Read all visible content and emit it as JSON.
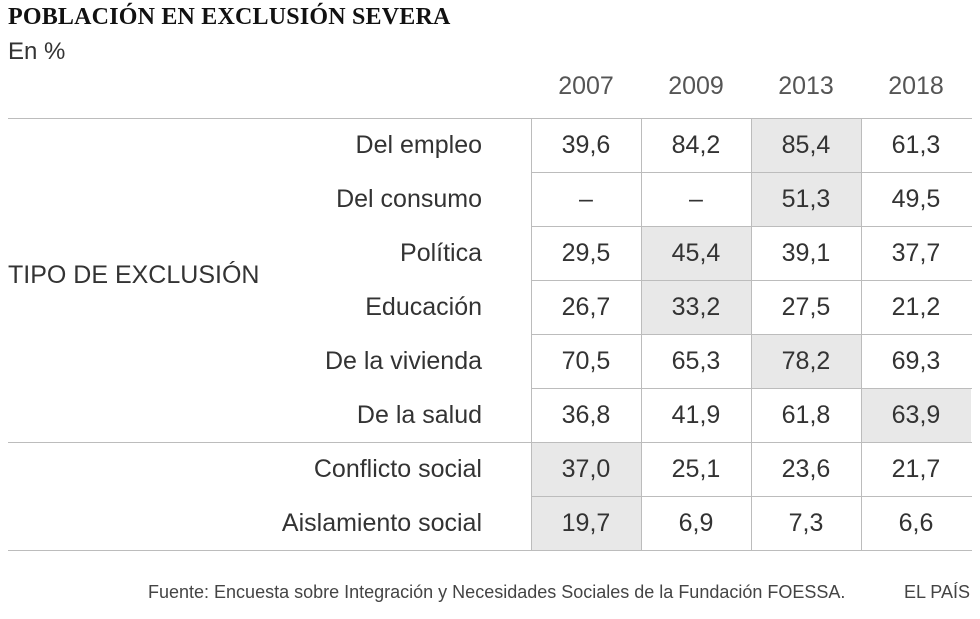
{
  "title": "POBLACIÓN EN EXCLUSIÓN SEVERA",
  "subtitle": "En %",
  "group_label": "TIPO DE EXCLUSIÓN",
  "source": "Fuente: Encuesta sobre Integración y Necesidades Sociales de la Fundación FOESSA.",
  "brand": "EL PAÍS",
  "colors": {
    "highlight": "#e8e8e8",
    "rule": "#bcbcbc",
    "text": "#333333"
  },
  "chart_data": {
    "type": "table",
    "title": "POBLACIÓN EN EXCLUSIÓN SEVERA",
    "subtitle": "En %",
    "columns": [
      "2007",
      "2009",
      "2013",
      "2018"
    ],
    "rows": [
      {
        "label": "Del empleo",
        "values": [
          "39,6",
          "84,2",
          "85,4",
          "61,3"
        ],
        "highlight": 2
      },
      {
        "label": "Del consumo",
        "values": [
          "–",
          "–",
          "51,3",
          "49,5"
        ],
        "highlight": 2
      },
      {
        "label": "Política",
        "values": [
          "29,5",
          "45,4",
          "39,1",
          "37,7"
        ],
        "highlight": 1
      },
      {
        "label": "Educación",
        "values": [
          "26,7",
          "33,2",
          "27,5",
          "21,2"
        ],
        "highlight": 1
      },
      {
        "label": "De la vivienda",
        "values": [
          "70,5",
          "65,3",
          "78,2",
          "69,3"
        ],
        "highlight": 2
      },
      {
        "label": "De la salud",
        "values": [
          "36,8",
          "41,9",
          "61,8",
          "63,9"
        ],
        "highlight": 3
      },
      {
        "label": "Conflicto social",
        "values": [
          "37,0",
          "25,1",
          "23,6",
          "21,7"
        ],
        "highlight": 0
      },
      {
        "label": "Aislamiento social",
        "values": [
          "19,7",
          "6,9",
          "7,3",
          "6,6"
        ],
        "highlight": 0
      }
    ]
  }
}
